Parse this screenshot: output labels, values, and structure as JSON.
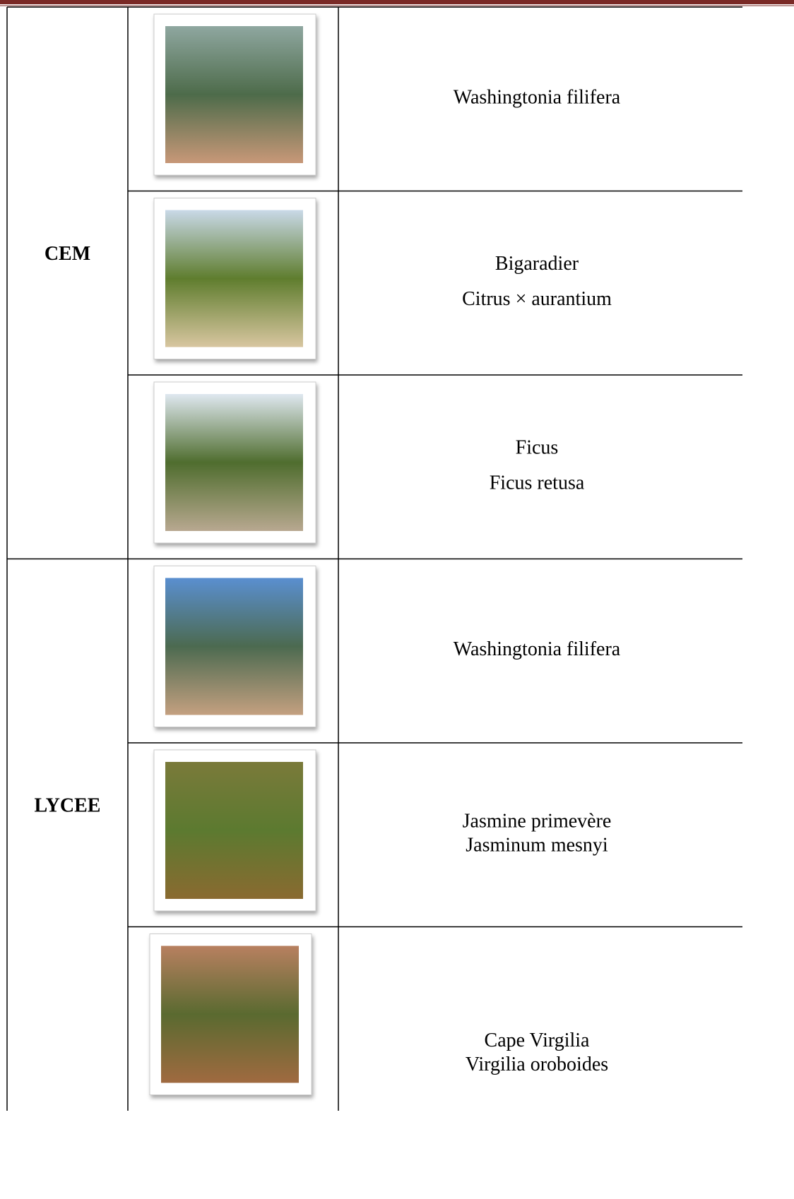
{
  "table": {
    "groups": [
      {
        "label": "CEM",
        "rows": [
          {
            "lines": [
              "Washingtonia filifera"
            ]
          },
          {
            "lines": [
              "Bigaradier",
              "Citrus × aurantium"
            ]
          },
          {
            "lines": [
              "Ficus",
              "Ficus retusa"
            ]
          }
        ]
      },
      {
        "label": "LYCEE",
        "rows": [
          {
            "lines": [
              "Washingtonia filifera"
            ]
          },
          {
            "lines": [
              "Jasmine primevère",
              "Jasminum mesnyi"
            ]
          },
          {
            "lines": [
              "Cape Virgilia",
              "Virgilia oroboides"
            ]
          }
        ]
      }
    ]
  }
}
